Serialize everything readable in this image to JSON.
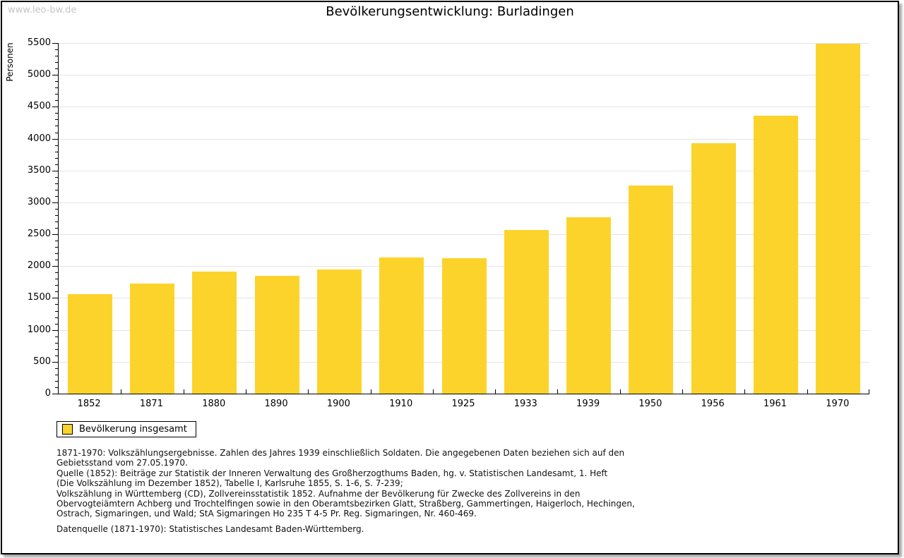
{
  "page": {
    "watermark": "www.leo-bw.de"
  },
  "chart_data": {
    "type": "bar",
    "title": "Bevölkerungsentwicklung: Burladingen",
    "ylabel": "Personen",
    "xlabel": "",
    "categories": [
      "1852",
      "1871",
      "1880",
      "1890",
      "1900",
      "1910",
      "1925",
      "1933",
      "1939",
      "1950",
      "1956",
      "1961",
      "1970"
    ],
    "values": [
      1560,
      1730,
      1910,
      1845,
      1945,
      2140,
      2130,
      2565,
      2765,
      3270,
      3925,
      4365,
      5485
    ],
    "series_name": "Bevölkerung insgesamt",
    "ylim": [
      0,
      5500
    ],
    "ytick_step": 500,
    "y_minor_step": 100,
    "grid": "horizontal-major",
    "legend_position": "bottom-left",
    "bar_color": "#fcd32b"
  },
  "legend": {
    "label": "Bevölkerung insgesamt",
    "swatch_color": "#fcd32b"
  },
  "footnotes": {
    "lines": [
      "1871-1970: Volkszählungsergebnisse. Zahlen des Jahres 1939 einschließlich Soldaten. Die angegebenen Daten beziehen sich auf den",
      "Gebietsstand vom 27.05.1970.",
      "Quelle (1852): Beiträge zur Statistik der Inneren Verwaltung des Großherzogthums Baden, hg. v. Statistischen Landesamt, 1. Heft",
      "(Die Volkszählung im Dezember 1852), Tabelle I, Karlsruhe 1855, S. 1-6, S. 7-239;",
      "Volkszählung in Württemberg (CD), Zollvereinsstatistik 1852. Aufnahme der Bevölkerung für Zwecke des Zollvereins in den",
      "Obervogteiämtern Achberg und Trochtelfingen sowie in den Oberamtsbezirken Glatt, Straßberg, Gammertingen, Haigerloch, Hechingen,",
      "Ostrach, Sigmaringen, und Wald; StA Sigmaringen Ho 235 T 4-5 Pr. Reg. Sigmaringen, Nr. 460-469."
    ],
    "datasource": "Datenquelle (1871-1970): Statistisches Landesamt Baden-Württemberg."
  },
  "colors": {
    "bar": "#fcd32b",
    "gridline": "#e4e4e4",
    "axis": "#000000",
    "watermark": "#c5c5c5",
    "frame_shadow": "#aaaaaa",
    "background": "#ffffff"
  }
}
